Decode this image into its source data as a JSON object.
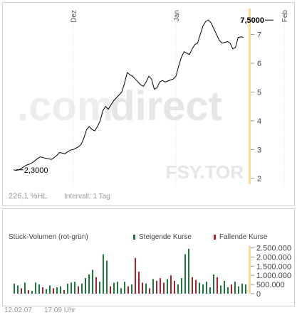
{
  "watermark": {
    "brand_left": ".com",
    "brand_right": "direct",
    "symbol": "FSY.TOR"
  },
  "price_footer": {
    "change": "226,1 %HL",
    "interval": "Intervall: 1 Tag"
  },
  "volume_header": {
    "title": "Stück-Volumen (rot-grün)",
    "rising_label": "Steigende Kurse",
    "falling_label": "Fallende Kurse"
  },
  "bottom_footer": {
    "date": "12.02.07",
    "time": "17:09 Uhr"
  },
  "colors": {
    "rising": "#1b7a3a",
    "falling": "#b0202a",
    "line": "#000000",
    "axis_highlight": "#f7dc96",
    "watermark": "#e6e6e6"
  },
  "chart_data": [
    {
      "type": "line",
      "title": "",
      "x_ticks": [
        {
          "label": "Dez",
          "index": 22
        },
        {
          "label": "Jan",
          "index": 60
        },
        {
          "label": "Feb",
          "index": 100
        }
      ],
      "y_ticks": [
        "2",
        "3",
        "4",
        "5",
        "6",
        "7"
      ],
      "ylim": [
        1.8,
        7.9
      ],
      "annotations": [
        {
          "text": "2,3000",
          "index": 1,
          "value": 2.3
        },
        {
          "text": "7,5000",
          "index": 95,
          "value": 7.5
        }
      ],
      "values": [
        2.3,
        2.28,
        2.3,
        2.35,
        2.42,
        2.47,
        2.5,
        2.55,
        2.62,
        2.7,
        2.75,
        2.72,
        2.7,
        2.68,
        2.66,
        2.72,
        2.8,
        2.9,
        2.88,
        2.86,
        2.92,
        2.98,
        3.0,
        3.05,
        3.1,
        3.18,
        3.4,
        3.7,
        3.8,
        3.7,
        3.65,
        3.8,
        4.0,
        4.35,
        4.5,
        4.4,
        4.55,
        4.7,
        4.8,
        4.9,
        5.0,
        5.3,
        5.68,
        5.6,
        5.55,
        5.45,
        5.35,
        5.25,
        5.2,
        5.35,
        5.55,
        5.45,
        5.1,
        5.15,
        5.35,
        5.4,
        5.35,
        5.38,
        5.42,
        5.45,
        5.55,
        5.9,
        6.2,
        6.4,
        6.35,
        6.3,
        6.5,
        6.65,
        6.7,
        7.0,
        7.3,
        7.45,
        7.5,
        7.4,
        7.2,
        7.0,
        6.8,
        6.7,
        6.72,
        6.75,
        6.7,
        6.5,
        6.55,
        6.9,
        6.92,
        6.9
      ]
    },
    {
      "type": "bar",
      "title": "Stück-Volumen (rot-grün)",
      "y_ticks": [
        "0",
        "500.000",
        "1.000.000",
        "1.500.000",
        "2.000.000",
        "2.500.000"
      ],
      "ylim": [
        0,
        2600000
      ],
      "series": [
        {
          "name": "Steigende Kurse",
          "color": "#1b7a3a"
        },
        {
          "name": "Fallende Kurse",
          "color": "#b0202a"
        }
      ],
      "bars": [
        {
          "v": 550000,
          "d": "up"
        },
        {
          "v": 450000,
          "d": "up"
        },
        {
          "v": 300000,
          "d": "down"
        },
        {
          "v": 600000,
          "d": "up"
        },
        {
          "v": 200000,
          "d": "down"
        },
        {
          "v": 150000,
          "d": "up"
        },
        {
          "v": 600000,
          "d": "up"
        },
        {
          "v": 500000,
          "d": "up"
        },
        {
          "v": 350000,
          "d": "down"
        },
        {
          "v": 250000,
          "d": "up"
        },
        {
          "v": 450000,
          "d": "up"
        },
        {
          "v": 300000,
          "d": "down"
        },
        {
          "v": 350000,
          "d": "up"
        },
        {
          "v": 400000,
          "d": "up"
        },
        {
          "v": 200000,
          "d": "down"
        },
        {
          "v": 550000,
          "d": "up"
        },
        {
          "v": 600000,
          "d": "up"
        },
        {
          "v": 650000,
          "d": "up"
        },
        {
          "v": 400000,
          "d": "down"
        },
        {
          "v": 550000,
          "d": "up"
        },
        {
          "v": 850000,
          "d": "up"
        },
        {
          "v": 1050000,
          "d": "up"
        },
        {
          "v": 1300000,
          "d": "up"
        },
        {
          "v": 900000,
          "d": "down"
        },
        {
          "v": 650000,
          "d": "up"
        },
        {
          "v": 2150000,
          "d": "up"
        },
        {
          "v": 1800000,
          "d": "up"
        },
        {
          "v": 400000,
          "d": "down"
        },
        {
          "v": 600000,
          "d": "up"
        },
        {
          "v": 650000,
          "d": "up"
        },
        {
          "v": 300000,
          "d": "up"
        },
        {
          "v": 650000,
          "d": "up"
        },
        {
          "v": 400000,
          "d": "down"
        },
        {
          "v": 500000,
          "d": "up"
        },
        {
          "v": 1950000,
          "d": "down"
        },
        {
          "v": 1200000,
          "d": "down"
        },
        {
          "v": 600000,
          "d": "down"
        },
        {
          "v": 550000,
          "d": "up"
        },
        {
          "v": 300000,
          "d": "down"
        },
        {
          "v": 800000,
          "d": "up"
        },
        {
          "v": 700000,
          "d": "down"
        },
        {
          "v": 850000,
          "d": "down"
        },
        {
          "v": 600000,
          "d": "down"
        },
        {
          "v": 800000,
          "d": "up"
        },
        {
          "v": 1000000,
          "d": "down"
        },
        {
          "v": 700000,
          "d": "down"
        },
        {
          "v": 500000,
          "d": "up"
        },
        {
          "v": 850000,
          "d": "up"
        },
        {
          "v": 2150000,
          "d": "up"
        },
        {
          "v": 2450000,
          "d": "up"
        },
        {
          "v": 900000,
          "d": "down"
        },
        {
          "v": 750000,
          "d": "down"
        },
        {
          "v": 600000,
          "d": "up"
        },
        {
          "v": 500000,
          "d": "up"
        },
        {
          "v": 650000,
          "d": "up"
        },
        {
          "v": 350000,
          "d": "up"
        },
        {
          "v": 1050000,
          "d": "up"
        },
        {
          "v": 900000,
          "d": "down"
        },
        {
          "v": 450000,
          "d": "up"
        },
        {
          "v": 700000,
          "d": "up"
        },
        {
          "v": 350000,
          "d": "up"
        },
        {
          "v": 500000,
          "d": "down"
        },
        {
          "v": 650000,
          "d": "up"
        },
        {
          "v": 400000,
          "d": "up"
        },
        {
          "v": 550000,
          "d": "up"
        },
        {
          "v": 500000,
          "d": "up"
        }
      ]
    }
  ]
}
